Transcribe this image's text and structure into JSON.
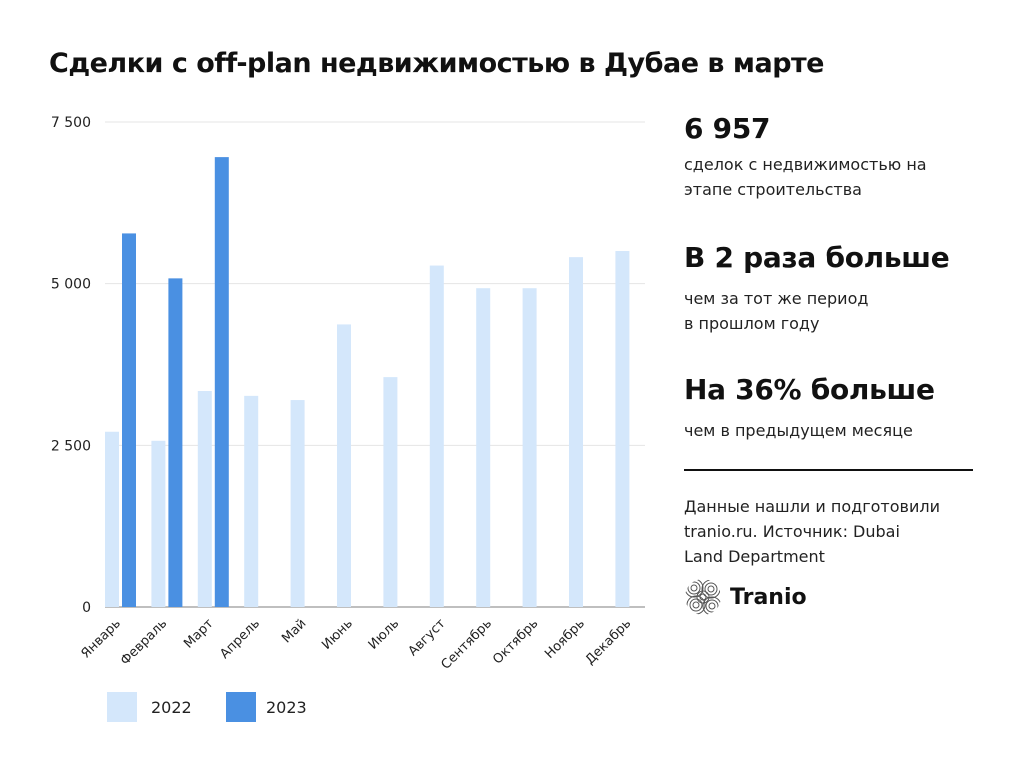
{
  "title": "Сделки с off-plan недвижимостью в Дубае в марте",
  "chart_data": {
    "type": "bar",
    "title": "Сделки с off-plan недвижимостью в Дубае в марте",
    "xlabel": "",
    "ylabel": "",
    "ylim": [
      0,
      7500
    ],
    "yticks": [
      0,
      2500,
      5000,
      7500
    ],
    "ytick_labels": [
      "0",
      "2 500",
      "5 000",
      "7 500"
    ],
    "grid": true,
    "categories": [
      "Январь",
      "Февраль",
      "Март",
      "Апрель",
      "Май",
      "Июнь",
      "Июль",
      "Август",
      "Сентябрь",
      "Октябрь",
      "Ноябрь",
      "Декабрь"
    ],
    "series": [
      {
        "name": "2022",
        "color": "#d4e7fb",
        "values": [
          2710,
          2570,
          3340,
          3265,
          3200,
          4370,
          3555,
          5280,
          4930,
          4930,
          5410,
          5505
        ]
      },
      {
        "name": "2023",
        "color": "#4a90e2",
        "values": [
          5777,
          5082,
          6957,
          null,
          null,
          null,
          null,
          null,
          null,
          null,
          null,
          null
        ]
      }
    ],
    "legend_position": "bottom-left"
  },
  "stats": [
    {
      "value": "6 957",
      "text": [
        "сделок с недвижимостью на",
        "этапе строительства"
      ]
    },
    {
      "value": "В 2 раза больше",
      "text": [
        "чем за тот же период",
        "в прошлом году"
      ]
    },
    {
      "value": "На 36% больше",
      "text": [
        "чем в предыдущем месяце"
      ]
    }
  ],
  "source": [
    "Данные нашли и подготовили",
    "tranio.ru. Источник: Dubai",
    "Land Department"
  ],
  "logo": {
    "name": "Tranio",
    "icon": "spiral-circle-logo-icon"
  }
}
